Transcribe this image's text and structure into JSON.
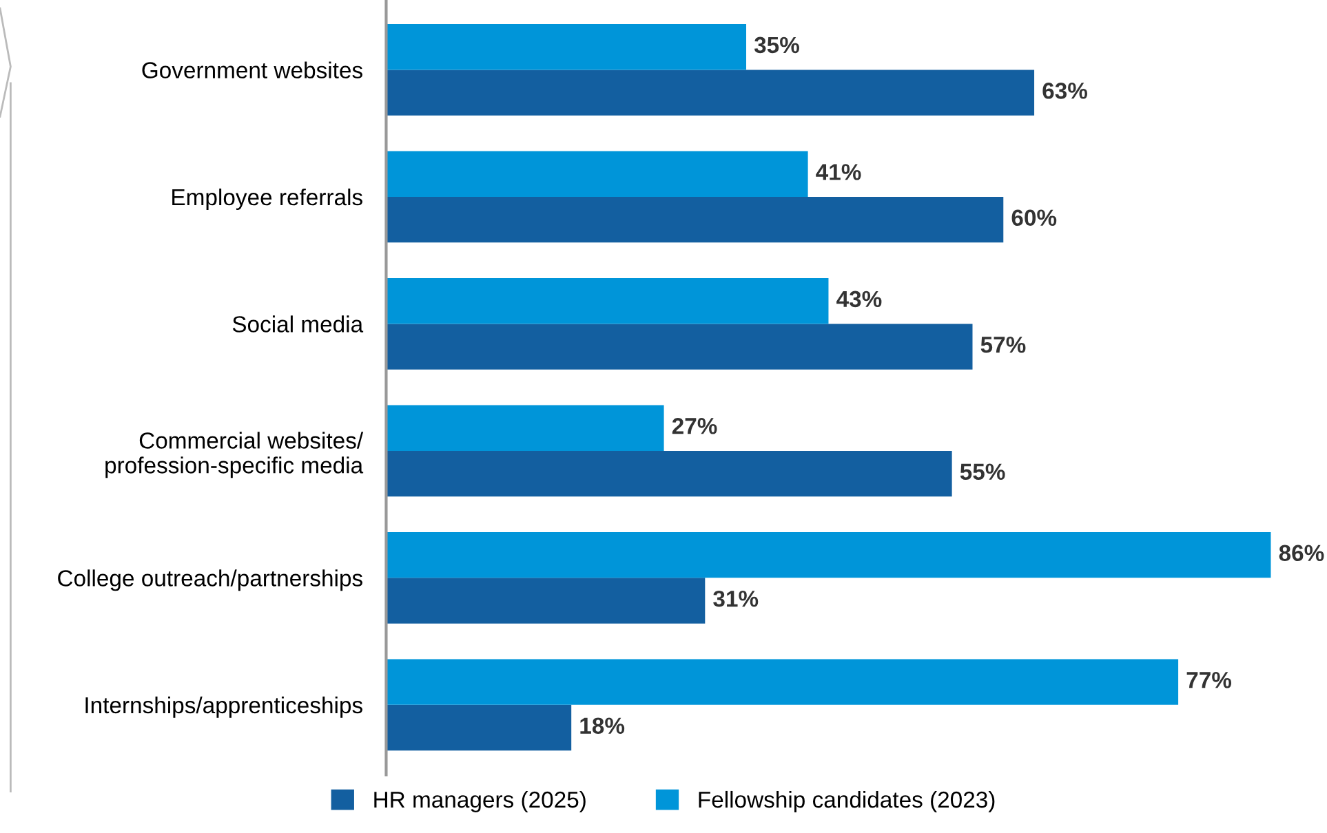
{
  "chart_data": {
    "type": "bar",
    "orientation": "horizontal",
    "categories": [
      "Government websites",
      "Employee referrals",
      "Social media",
      "Commercial websites/\nprofession-specific media",
      "College outreach/partnerships",
      "Internships/apprenticeships"
    ],
    "series": [
      {
        "name": "HR managers (2025)",
        "color": "#135fa0",
        "values": [
          63,
          60,
          57,
          55,
          31,
          18
        ],
        "value_labels": [
          "63%",
          "60%",
          "57%",
          "55%",
          "31%",
          "18%"
        ]
      },
      {
        "name": "Fellowship candidates (2023)",
        "color": "#0095d9",
        "values": [
          35,
          41,
          43,
          27,
          86,
          77
        ],
        "value_labels": [
          "35%",
          "41%",
          "43%",
          "27%",
          "86%",
          "77%"
        ]
      }
    ],
    "tick_labels": "y",
    "grid": false,
    "legend": "bottom"
  }
}
